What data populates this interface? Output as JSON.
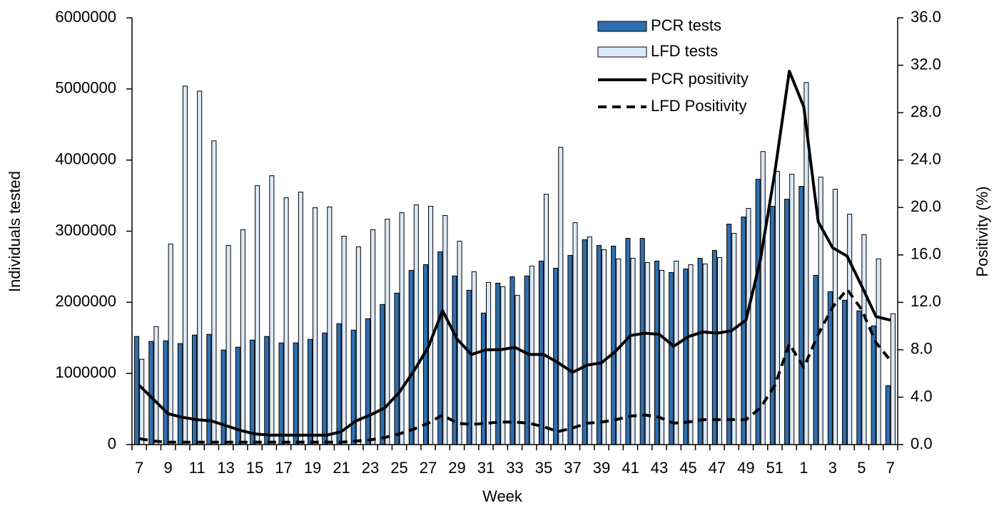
{
  "chart_data": {
    "type": "bar_line",
    "x_label": "Week",
    "y_label": "Individuals tested",
    "y2_label": "Positivity (%)",
    "categories": [
      7,
      null,
      9,
      null,
      11,
      null,
      13,
      null,
      15,
      null,
      17,
      null,
      19,
      null,
      21,
      null,
      23,
      null,
      25,
      null,
      27,
      null,
      29,
      null,
      31,
      null,
      33,
      null,
      35,
      null,
      37,
      null,
      39,
      null,
      41,
      null,
      43,
      null,
      45,
      null,
      47,
      null,
      49,
      null,
      51,
      null,
      1,
      null,
      3,
      null,
      5,
      null,
      7
    ],
    "series": [
      {
        "name": "PCR tests",
        "kind": "bar",
        "color": "#2f6fae",
        "values": [
          1520000,
          1450000,
          1460000,
          1420000,
          1540000,
          1550000,
          1330000,
          1370000,
          1470000,
          1520000,
          1430000,
          1430000,
          1480000,
          1570000,
          1700000,
          1610000,
          1770000,
          1970000,
          2130000,
          2450000,
          2530000,
          2710000,
          2370000,
          2170000,
          1850000,
          2270000,
          2360000,
          2370000,
          2580000,
          2480000,
          2660000,
          2880000,
          2800000,
          2790000,
          2900000,
          2900000,
          2580000,
          2420000,
          2470000,
          2620000,
          2730000,
          3100000,
          3200000,
          3730000,
          3350000,
          3450000,
          3630000,
          2380000,
          2150000,
          2030000,
          1880000,
          1670000,
          830000
        ]
      },
      {
        "name": "LFD tests",
        "kind": "bar",
        "color": "#dce9f7",
        "values": [
          1200000,
          1660000,
          2820000,
          5040000,
          4970000,
          4270000,
          2800000,
          3020000,
          3640000,
          3780000,
          3470000,
          3550000,
          3330000,
          3340000,
          2930000,
          2780000,
          3020000,
          3170000,
          3260000,
          3370000,
          3350000,
          3220000,
          2860000,
          2430000,
          2280000,
          2220000,
          2100000,
          2510000,
          3520000,
          4180000,
          3120000,
          2920000,
          2740000,
          2610000,
          2620000,
          2560000,
          2450000,
          2580000,
          2530000,
          2540000,
          2630000,
          2970000,
          3320000,
          4120000,
          3840000,
          3800000,
          5090000,
          3760000,
          3590000,
          3240000,
          2950000,
          2610000,
          1840000
        ]
      },
      {
        "name": "PCR positivity",
        "kind": "line",
        "axis": "y2",
        "color": "#000000",
        "values": [
          5,
          3.8,
          2.6,
          2.3,
          2.1,
          2.0,
          1.6,
          1.2,
          0.9,
          0.8,
          0.8,
          0.8,
          0.8,
          0.8,
          1.1,
          2.0,
          2.5,
          3.1,
          4.4,
          6.2,
          8.2,
          11.3,
          8.9,
          7.6,
          8.0,
          8.0,
          8.2,
          7.6,
          7.6,
          6.9,
          6.1,
          6.7,
          6.9,
          7.9,
          9.2,
          9.4,
          9.3,
          8.3,
          9.1,
          9.5,
          9.4,
          9.6,
          10.5,
          15.6,
          23.0,
          31.5,
          28.5,
          18.8,
          16.6,
          15.9,
          13.4,
          10.8,
          10.5
        ]
      },
      {
        "name": "LFD Positivity",
        "kind": "line",
        "dashed": true,
        "axis": "y2",
        "color": "#000000",
        "values": [
          0.5,
          0.3,
          0.2,
          0.2,
          0.2,
          0.2,
          0.2,
          0.2,
          0.2,
          0.2,
          0.2,
          0.2,
          0.2,
          0.2,
          0.2,
          0.3,
          0.4,
          0.6,
          0.9,
          1.3,
          1.8,
          2.5,
          1.8,
          1.7,
          1.8,
          1.9,
          1.9,
          1.8,
          1.5,
          1.1,
          1.4,
          1.8,
          1.9,
          2.1,
          2.4,
          2.5,
          2.3,
          1.8,
          1.9,
          2.1,
          2.1,
          2.1,
          2.1,
          3.1,
          5.0,
          8.5,
          6.5,
          9.3,
          11.6,
          13.1,
          11.4,
          8.6,
          7.1
        ]
      }
    ],
    "ylim": [
      0,
      6000000
    ],
    "yticks": [
      0,
      1000000,
      2000000,
      3000000,
      4000000,
      5000000,
      6000000
    ],
    "y2lim": [
      0,
      36
    ],
    "y2ticks": [
      {
        "value": 0,
        "label": "0.0"
      },
      {
        "value": 4,
        "label": "4.0"
      },
      {
        "value": 8,
        "label": "8.0"
      },
      {
        "value": 12,
        "label": "12.0"
      },
      {
        "value": 16,
        "label": "16.0"
      },
      {
        "value": 20,
        "label": "20.0"
      },
      {
        "value": 24,
        "label": "24.0"
      },
      {
        "value": 28,
        "label": "28.0"
      },
      {
        "value": 32,
        "label": "32.0"
      },
      {
        "value": 36,
        "label": "36.0"
      }
    ],
    "legend": "top-right"
  }
}
